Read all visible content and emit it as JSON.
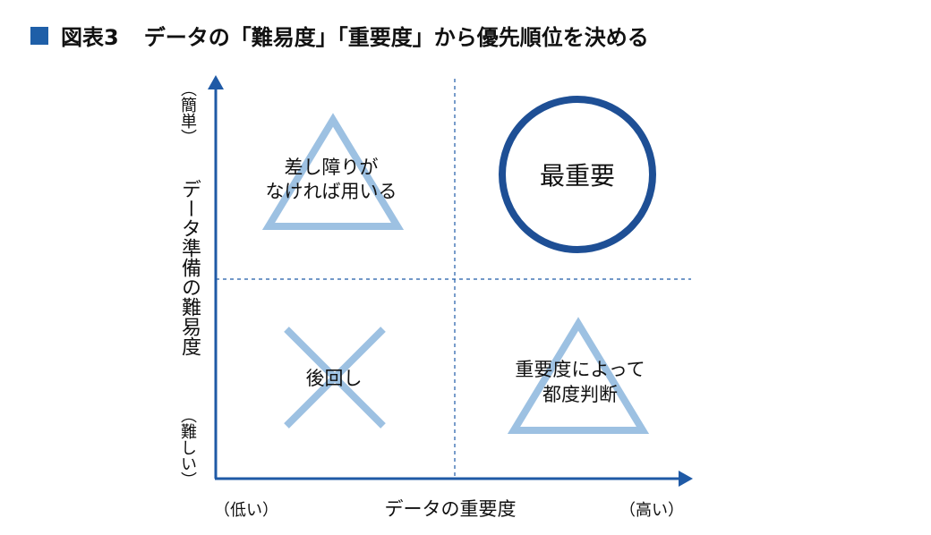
{
  "title": {
    "figure_number": "図表3",
    "text": "データの「難易度」「重要度」から優先順位を決める"
  },
  "axes": {
    "x_label": "データの重要度",
    "x_low": "（低い）",
    "x_high": "（高い）",
    "y_label": "データ準備の難易度",
    "y_top": "（簡単）",
    "y_bottom": "（難しい）"
  },
  "quadrants": {
    "top_left": {
      "symbol": "triangle",
      "line1": "差し障りが",
      "line2": "なければ用いる"
    },
    "top_right": {
      "symbol": "circle",
      "text": "最重要"
    },
    "bottom_left": {
      "symbol": "cross",
      "text": "後回し"
    },
    "bottom_right": {
      "symbol": "triangle",
      "line1": "重要度によって",
      "line2": "都度判断"
    }
  },
  "colors": {
    "axis": "#1f5aa6",
    "circle": "#1e4f95",
    "light": "#9dc1e2",
    "title_square": "#1f5fa8"
  }
}
